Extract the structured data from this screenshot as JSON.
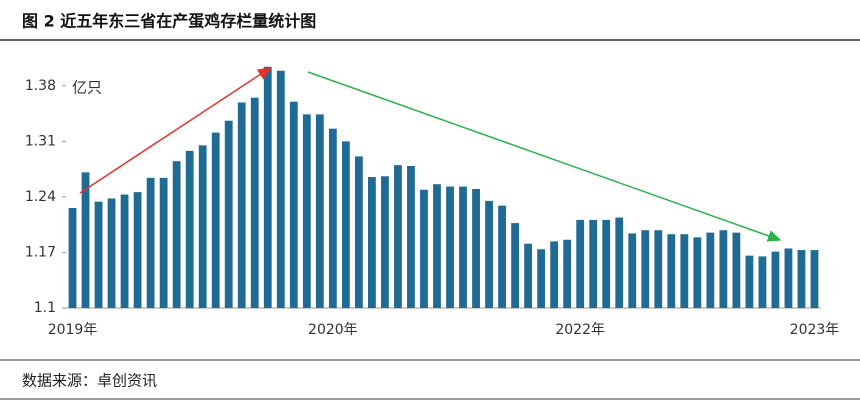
{
  "chart_data": {
    "type": "bar",
    "title": "图 2 近五年东三省在产蛋鸡存栏量统计图",
    "y_label": "亿只",
    "source": "数据来源：卓创资讯",
    "categories": [
      "2019年",
      null,
      null,
      null,
      null,
      null,
      null,
      null,
      null,
      null,
      null,
      null,
      null,
      null,
      null,
      null,
      null,
      null,
      null,
      null,
      "2020年",
      null,
      null,
      null,
      null,
      null,
      null,
      null,
      null,
      null,
      null,
      null,
      null,
      null,
      null,
      null,
      null,
      null,
      null,
      "2022年",
      null,
      null,
      null,
      null,
      null,
      null,
      null,
      null,
      null,
      null,
      null,
      null,
      null,
      null,
      null,
      null,
      null,
      "2023年"
    ],
    "values": [
      1.226,
      1.271,
      1.234,
      1.238,
      1.243,
      1.246,
      1.264,
      1.264,
      1.285,
      1.298,
      1.305,
      1.321,
      1.336,
      1.359,
      1.365,
      1.404,
      1.399,
      1.36,
      1.344,
      1.344,
      1.326,
      1.31,
      1.291,
      1.265,
      1.266,
      1.28,
      1.279,
      1.249,
      1.256,
      1.253,
      1.253,
      1.25,
      1.235,
      1.229,
      1.207,
      1.181,
      1.174,
      1.184,
      1.186,
      1.211,
      1.211,
      1.211,
      1.214,
      1.194,
      1.198,
      1.198,
      1.193,
      1.193,
      1.189,
      1.195,
      1.198,
      1.195,
      1.166,
      1.165,
      1.171,
      1.175,
      1.173,
      1.173
    ],
    "color": "#1f6b94",
    "ylim": [
      1.1,
      1.41
    ],
    "yticks": [
      1.1,
      1.17,
      1.24,
      1.31,
      1.38
    ]
  }
}
